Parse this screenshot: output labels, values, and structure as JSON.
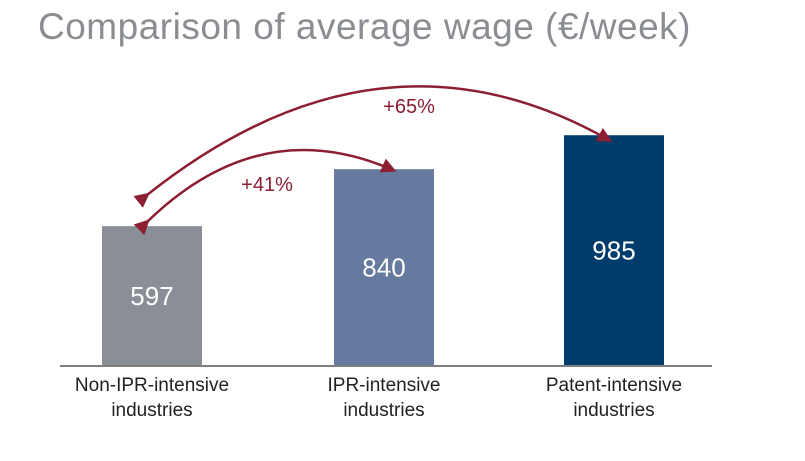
{
  "chart_data": {
    "type": "bar",
    "title": "Comparison of average wage (€/week)",
    "categories": [
      [
        "Non-IPR-intensive",
        "industries"
      ],
      [
        "IPR-intensive",
        "industries"
      ],
      [
        "Patent-intensive",
        "industries"
      ]
    ],
    "values": [
      597,
      840,
      985
    ],
    "ylim": [
      0,
      1050
    ],
    "xlabel": "",
    "ylabel": "",
    "bar_colors": [
      "#898e97",
      "#66799f",
      "#003c6b"
    ],
    "annotations": [
      {
        "text": "+41%",
        "from": 0,
        "to": 1
      },
      {
        "text": "+65%",
        "from": 0,
        "to": 2
      }
    ],
    "annotation_color": "#8c1f32",
    "axis_color": "#7f7f7f"
  }
}
